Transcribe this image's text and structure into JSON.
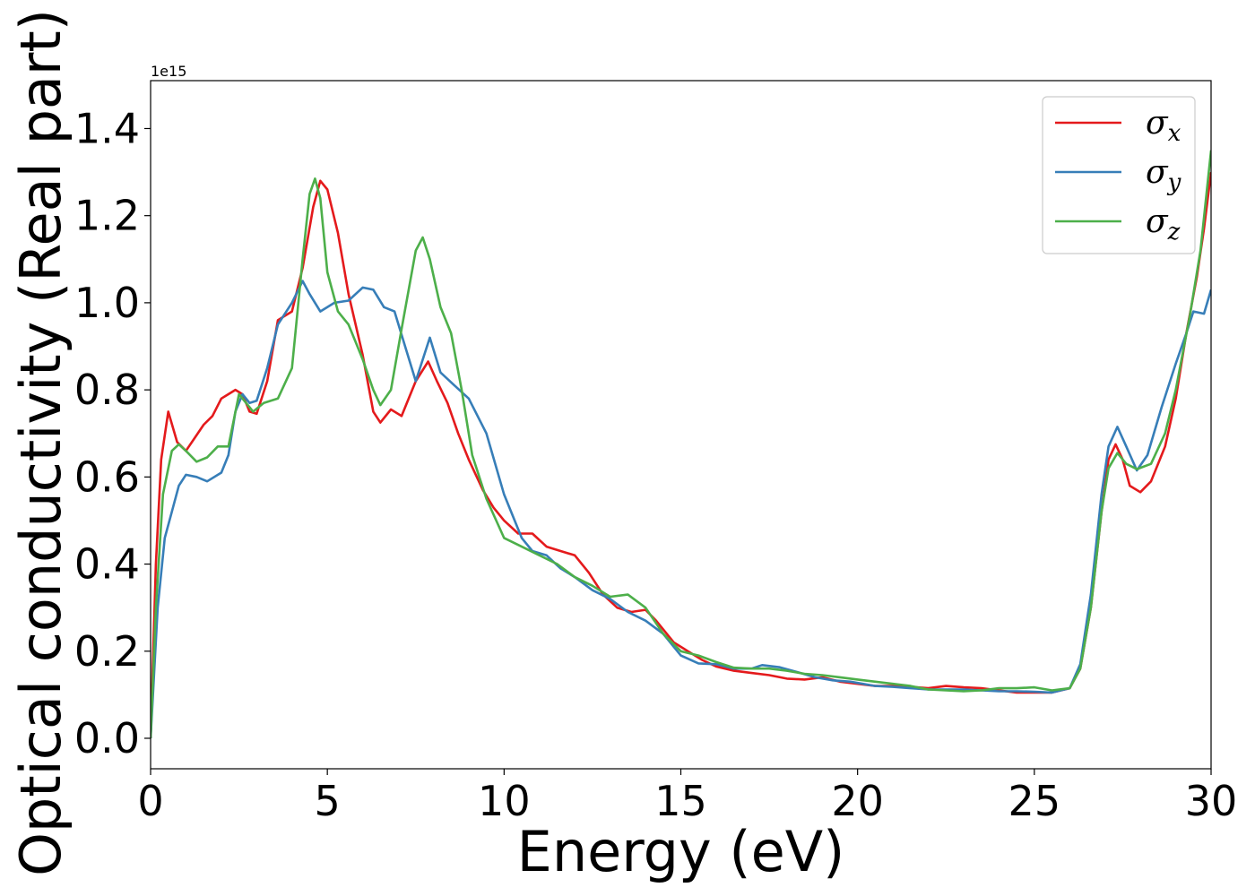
{
  "chart_data": {
    "type": "line",
    "xlabel": "Energy (eV)",
    "ylabel": "Optical conductivity (Real part)",
    "y_offset_label": "1e15",
    "xlim": [
      0,
      30
    ],
    "ylim": [
      -0.07,
      1.51
    ],
    "grid": false,
    "legend_placement": "top-right",
    "x_ticks": [
      0,
      5,
      10,
      15,
      20,
      25,
      30
    ],
    "x_tick_labels": [
      "0",
      "5",
      "10",
      "15",
      "20",
      "25",
      "30"
    ],
    "y_ticks": [
      0.0,
      0.2,
      0.4,
      0.6,
      0.8,
      1.0,
      1.2,
      1.4
    ],
    "y_tick_labels": [
      "0.0",
      "0.2",
      "0.4",
      "0.6",
      "0.8",
      "1.0",
      "1.2",
      "1.4"
    ],
    "series": [
      {
        "name": "σx",
        "symbol": "σ",
        "subscript": "x",
        "color": "#e41a1c",
        "points": [
          [
            0,
            0.0
          ],
          [
            0.15,
            0.4
          ],
          [
            0.3,
            0.64
          ],
          [
            0.5,
            0.75
          ],
          [
            0.75,
            0.68
          ],
          [
            1.0,
            0.66
          ],
          [
            1.25,
            0.69
          ],
          [
            1.5,
            0.72
          ],
          [
            1.75,
            0.74
          ],
          [
            2.0,
            0.78
          ],
          [
            2.4,
            0.8
          ],
          [
            2.6,
            0.79
          ],
          [
            2.8,
            0.75
          ],
          [
            3.0,
            0.745
          ],
          [
            3.3,
            0.82
          ],
          [
            3.6,
            0.96
          ],
          [
            4.0,
            0.98
          ],
          [
            4.3,
            1.08
          ],
          [
            4.6,
            1.22
          ],
          [
            4.8,
            1.28
          ],
          [
            5.0,
            1.26
          ],
          [
            5.3,
            1.16
          ],
          [
            5.6,
            1.02
          ],
          [
            6.0,
            0.88
          ],
          [
            6.3,
            0.75
          ],
          [
            6.5,
            0.725
          ],
          [
            6.8,
            0.755
          ],
          [
            7.1,
            0.74
          ],
          [
            7.5,
            0.82
          ],
          [
            7.85,
            0.865
          ],
          [
            8.1,
            0.82
          ],
          [
            8.4,
            0.77
          ],
          [
            8.7,
            0.7
          ],
          [
            9.0,
            0.64
          ],
          [
            9.4,
            0.57
          ],
          [
            9.7,
            0.53
          ],
          [
            10.0,
            0.5
          ],
          [
            10.4,
            0.47
          ],
          [
            10.8,
            0.47
          ],
          [
            11.2,
            0.44
          ],
          [
            11.6,
            0.43
          ],
          [
            12.0,
            0.42
          ],
          [
            12.4,
            0.38
          ],
          [
            12.8,
            0.33
          ],
          [
            13.2,
            0.3
          ],
          [
            13.6,
            0.29
          ],
          [
            14.0,
            0.295
          ],
          [
            14.3,
            0.27
          ],
          [
            14.8,
            0.22
          ],
          [
            15.2,
            0.2
          ],
          [
            15.6,
            0.18
          ],
          [
            16.0,
            0.165
          ],
          [
            16.5,
            0.155
          ],
          [
            17.0,
            0.15
          ],
          [
            17.5,
            0.145
          ],
          [
            18.0,
            0.137
          ],
          [
            18.5,
            0.135
          ],
          [
            19.0,
            0.14
          ],
          [
            19.5,
            0.13
          ],
          [
            20.0,
            0.125
          ],
          [
            20.5,
            0.12
          ],
          [
            21.0,
            0.12
          ],
          [
            21.5,
            0.118
          ],
          [
            22.0,
            0.115
          ],
          [
            22.5,
            0.12
          ],
          [
            23.0,
            0.117
          ],
          [
            23.5,
            0.115
          ],
          [
            24.0,
            0.11
          ],
          [
            24.5,
            0.105
          ],
          [
            25.0,
            0.105
          ],
          [
            25.5,
            0.105
          ],
          [
            26.0,
            0.115
          ],
          [
            26.3,
            0.16
          ],
          [
            26.6,
            0.3
          ],
          [
            26.9,
            0.52
          ],
          [
            27.1,
            0.64
          ],
          [
            27.3,
            0.675
          ],
          [
            27.5,
            0.64
          ],
          [
            27.7,
            0.58
          ],
          [
            28.0,
            0.565
          ],
          [
            28.3,
            0.59
          ],
          [
            28.7,
            0.67
          ],
          [
            29.0,
            0.78
          ],
          [
            29.3,
            0.93
          ],
          [
            29.6,
            1.06
          ],
          [
            29.8,
            1.17
          ],
          [
            30.0,
            1.3
          ]
        ]
      },
      {
        "name": "σy",
        "symbol": "σ",
        "subscript": "y",
        "color": "#377eb8",
        "points": [
          [
            0,
            0.0
          ],
          [
            0.2,
            0.3
          ],
          [
            0.4,
            0.46
          ],
          [
            0.6,
            0.52
          ],
          [
            0.8,
            0.58
          ],
          [
            1.0,
            0.605
          ],
          [
            1.3,
            0.6
          ],
          [
            1.6,
            0.59
          ],
          [
            2.0,
            0.61
          ],
          [
            2.2,
            0.65
          ],
          [
            2.4,
            0.75
          ],
          [
            2.6,
            0.79
          ],
          [
            2.8,
            0.77
          ],
          [
            3.0,
            0.775
          ],
          [
            3.3,
            0.85
          ],
          [
            3.6,
            0.95
          ],
          [
            4.0,
            1.0
          ],
          [
            4.3,
            1.05
          ],
          [
            4.5,
            1.02
          ],
          [
            4.8,
            0.98
          ],
          [
            5.2,
            1.0
          ],
          [
            5.6,
            1.005
          ],
          [
            6.0,
            1.035
          ],
          [
            6.3,
            1.03
          ],
          [
            6.6,
            0.99
          ],
          [
            6.9,
            0.98
          ],
          [
            7.2,
            0.9
          ],
          [
            7.5,
            0.82
          ],
          [
            7.9,
            0.92
          ],
          [
            8.2,
            0.84
          ],
          [
            8.6,
            0.81
          ],
          [
            9.0,
            0.78
          ],
          [
            9.5,
            0.7
          ],
          [
            10.0,
            0.56
          ],
          [
            10.5,
            0.46
          ],
          [
            10.8,
            0.43
          ],
          [
            11.2,
            0.42
          ],
          [
            11.6,
            0.39
          ],
          [
            12.0,
            0.37
          ],
          [
            12.5,
            0.34
          ],
          [
            13.0,
            0.32
          ],
          [
            13.5,
            0.29
          ],
          [
            14.0,
            0.27
          ],
          [
            14.5,
            0.24
          ],
          [
            15.0,
            0.19
          ],
          [
            15.5,
            0.172
          ],
          [
            16.0,
            0.17
          ],
          [
            16.5,
            0.16
          ],
          [
            17.0,
            0.16
          ],
          [
            17.3,
            0.168
          ],
          [
            17.8,
            0.163
          ],
          [
            18.3,
            0.152
          ],
          [
            18.8,
            0.14
          ],
          [
            19.3,
            0.133
          ],
          [
            19.8,
            0.13
          ],
          [
            20.5,
            0.12
          ],
          [
            21.0,
            0.118
          ],
          [
            21.5,
            0.115
          ],
          [
            22.0,
            0.112
          ],
          [
            22.5,
            0.112
          ],
          [
            23.0,
            0.112
          ],
          [
            23.5,
            0.11
          ],
          [
            24.0,
            0.108
          ],
          [
            24.5,
            0.108
          ],
          [
            25.0,
            0.107
          ],
          [
            25.5,
            0.105
          ],
          [
            26.0,
            0.115
          ],
          [
            26.3,
            0.17
          ],
          [
            26.6,
            0.33
          ],
          [
            26.9,
            0.56
          ],
          [
            27.1,
            0.67
          ],
          [
            27.35,
            0.715
          ],
          [
            27.6,
            0.67
          ],
          [
            27.9,
            0.615
          ],
          [
            28.2,
            0.65
          ],
          [
            28.6,
            0.76
          ],
          [
            29.0,
            0.86
          ],
          [
            29.3,
            0.93
          ],
          [
            29.5,
            0.98
          ],
          [
            29.8,
            0.975
          ],
          [
            30.0,
            1.03
          ]
        ]
      },
      {
        "name": "σz",
        "symbol": "σ",
        "subscript": "z",
        "color": "#4daf4a",
        "points": [
          [
            0,
            0.0
          ],
          [
            0.15,
            0.3
          ],
          [
            0.35,
            0.56
          ],
          [
            0.6,
            0.66
          ],
          [
            0.8,
            0.675
          ],
          [
            1.0,
            0.66
          ],
          [
            1.3,
            0.635
          ],
          [
            1.6,
            0.645
          ],
          [
            1.9,
            0.67
          ],
          [
            2.2,
            0.67
          ],
          [
            2.5,
            0.79
          ],
          [
            2.9,
            0.75
          ],
          [
            3.2,
            0.77
          ],
          [
            3.6,
            0.78
          ],
          [
            4.0,
            0.85
          ],
          [
            4.3,
            1.1
          ],
          [
            4.5,
            1.25
          ],
          [
            4.65,
            1.285
          ],
          [
            4.8,
            1.24
          ],
          [
            5.0,
            1.07
          ],
          [
            5.3,
            0.98
          ],
          [
            5.6,
            0.95
          ],
          [
            6.0,
            0.87
          ],
          [
            6.3,
            0.8
          ],
          [
            6.5,
            0.765
          ],
          [
            6.8,
            0.8
          ],
          [
            7.1,
            0.94
          ],
          [
            7.5,
            1.12
          ],
          [
            7.7,
            1.15
          ],
          [
            7.9,
            1.1
          ],
          [
            8.2,
            0.99
          ],
          [
            8.5,
            0.93
          ],
          [
            8.8,
            0.8
          ],
          [
            9.1,
            0.65
          ],
          [
            9.5,
            0.55
          ],
          [
            10.0,
            0.46
          ],
          [
            10.5,
            0.44
          ],
          [
            11.0,
            0.42
          ],
          [
            11.5,
            0.4
          ],
          [
            12.0,
            0.37
          ],
          [
            12.5,
            0.35
          ],
          [
            13.0,
            0.325
          ],
          [
            13.5,
            0.33
          ],
          [
            14.0,
            0.3
          ],
          [
            14.5,
            0.24
          ],
          [
            15.0,
            0.2
          ],
          [
            15.5,
            0.19
          ],
          [
            16.0,
            0.175
          ],
          [
            16.5,
            0.162
          ],
          [
            17.0,
            0.16
          ],
          [
            17.5,
            0.16
          ],
          [
            18.0,
            0.155
          ],
          [
            18.5,
            0.148
          ],
          [
            19.0,
            0.145
          ],
          [
            19.5,
            0.14
          ],
          [
            20.0,
            0.135
          ],
          [
            20.5,
            0.13
          ],
          [
            21.0,
            0.125
          ],
          [
            21.5,
            0.12
          ],
          [
            22.0,
            0.112
          ],
          [
            22.5,
            0.11
          ],
          [
            23.0,
            0.108
          ],
          [
            23.5,
            0.11
          ],
          [
            24.0,
            0.115
          ],
          [
            24.5,
            0.115
          ],
          [
            25.0,
            0.117
          ],
          [
            25.5,
            0.11
          ],
          [
            26.0,
            0.115
          ],
          [
            26.3,
            0.16
          ],
          [
            26.6,
            0.3
          ],
          [
            26.9,
            0.52
          ],
          [
            27.1,
            0.62
          ],
          [
            27.35,
            0.655
          ],
          [
            27.6,
            0.63
          ],
          [
            27.9,
            0.618
          ],
          [
            28.3,
            0.63
          ],
          [
            28.7,
            0.7
          ],
          [
            29.0,
            0.8
          ],
          [
            29.4,
            0.97
          ],
          [
            29.7,
            1.12
          ],
          [
            30.0,
            1.35
          ]
        ]
      }
    ]
  }
}
